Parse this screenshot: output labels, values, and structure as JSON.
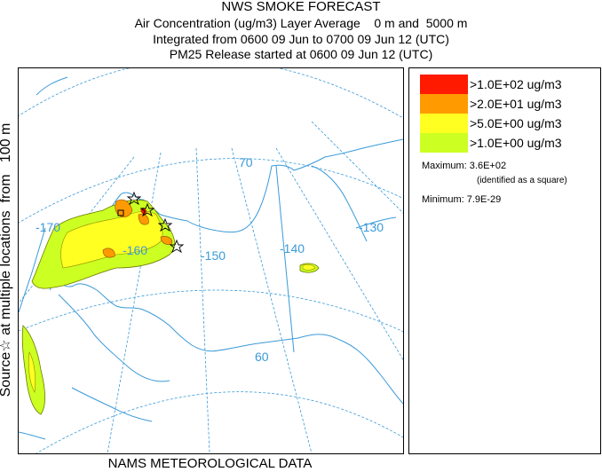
{
  "header": {
    "title": "NWS SMOKE FORECAST",
    "line1": "Air Concentration (ug/m3) Layer Average    0 m and  5000 m",
    "line2": "Integrated from 0600 09 Jun to 0700 09 Jun 12 (UTC)",
    "line3": "PM25 Release started at 0600 09 Jun 12 (UTC)"
  },
  "side_label": "Source☆ at multiple locations  from   100 m",
  "bottom_label": "NAMS METEOROLOGICAL DATA",
  "map": {
    "longitude_labels": [
      "-170",
      "-160",
      "-150",
      "-140",
      "-130"
    ],
    "latitude_labels": [
      "70",
      "60"
    ],
    "colors": {
      "ocean_line": "#3a9ad8",
      "grid_line": "#3a9ad8",
      "boundary": "#3a9ad8"
    }
  },
  "legend": {
    "items": [
      {
        "label": ">1.0E+02 ug/m3",
        "color": "#ff1a00"
      },
      {
        "label": ">2.0E+01 ug/m3",
        "color": "#ff9a00"
      },
      {
        "label": ">5.0E+00 ug/m3",
        "color": "#ffff22"
      },
      {
        "label": ">1.0E+00 ug/m3",
        "color": "#ccff22"
      }
    ],
    "maximum_label": "Maximum: 3.6E+02",
    "maximum_note": "(identified as a square)",
    "minimum_label": "Minimum: 7.9E-29"
  }
}
